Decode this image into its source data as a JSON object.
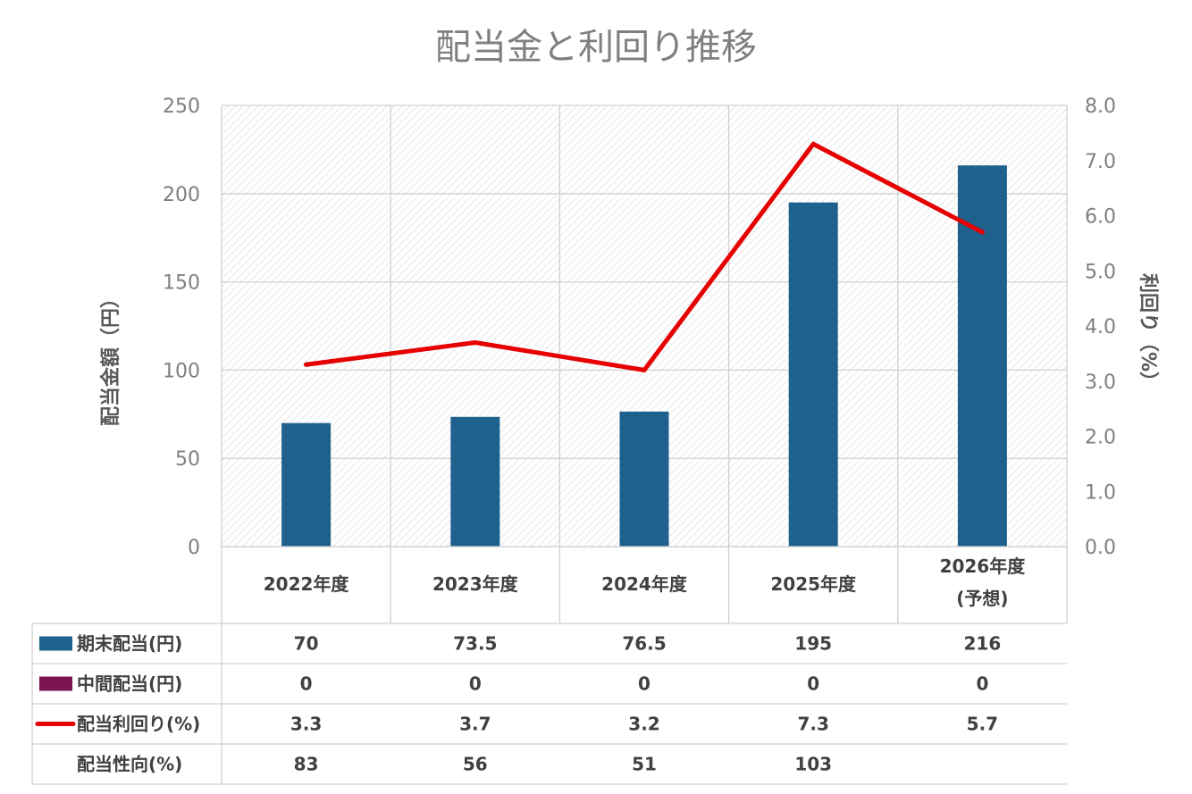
{
  "chart_data": {
    "type": "bar",
    "title": "配当金と利回り推移",
    "ylabel": "配当金額（円）",
    "y2label": "利回り（%）",
    "ylim": [
      0,
      250
    ],
    "y2lim": [
      0,
      8
    ],
    "yticks": [
      "0",
      "50",
      "100",
      "150",
      "200",
      "250"
    ],
    "y2ticks": [
      "0.0",
      "1.0",
      "2.0",
      "3.0",
      "4.0",
      "5.0",
      "6.0",
      "7.0",
      "8.0"
    ],
    "categories": [
      {
        "line1": "2022年度",
        "line2": ""
      },
      {
        "line1": "2023年度",
        "line2": ""
      },
      {
        "line1": "2024年度",
        "line2": ""
      },
      {
        "line1": "2025年度",
        "line2": ""
      },
      {
        "line1": "2026年度",
        "line2": "(予想)"
      }
    ],
    "series": [
      {
        "name": "期末配当(円)",
        "type": "bar",
        "axis": "left",
        "color": "#1f618d",
        "values": [
          70,
          73.5,
          76.5,
          195,
          216
        ],
        "display": [
          "70",
          "73.5",
          "76.5",
          "195",
          "216"
        ]
      },
      {
        "name": "中間配当(円)",
        "type": "bar",
        "axis": "left",
        "color": "#7b1550",
        "values": [
          0,
          0,
          0,
          0,
          0
        ],
        "display": [
          "0",
          "0",
          "0",
          "0",
          "0"
        ]
      },
      {
        "name": "配当利回り(%)",
        "type": "line",
        "axis": "right",
        "color": "#e60000",
        "values": [
          3.3,
          3.7,
          3.2,
          7.3,
          5.7
        ],
        "display": [
          "3.3",
          "3.7",
          "3.2",
          "7.3",
          "5.7"
        ]
      }
    ],
    "table_extra_rows": [
      {
        "name": "配当性向(%)",
        "display": [
          "83",
          "56",
          "51",
          "103",
          ""
        ]
      }
    ],
    "grid": true,
    "legend": "data-table"
  }
}
